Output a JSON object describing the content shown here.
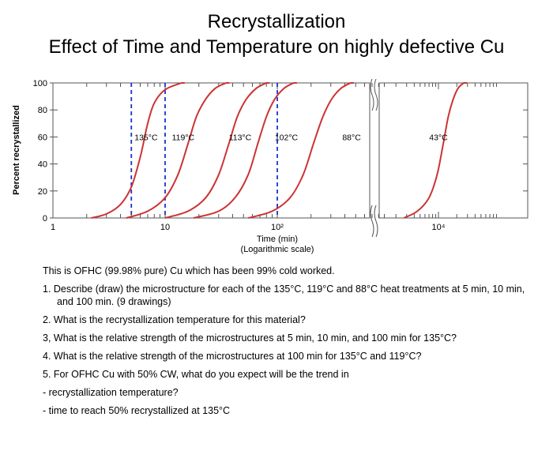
{
  "title_line1": "Recrystallization",
  "title_line2": "Effect of Time and Temperature on highly defective Cu",
  "chart_data": {
    "type": "line",
    "ylabel": "Percent recrystallized",
    "xlabel": "Time (min)",
    "xlabel_sub": "(Logarithmic scale)",
    "x_scale": "log",
    "ylim": [
      0,
      100
    ],
    "y_ticks": [
      "0",
      "20",
      "40",
      "60",
      "80",
      "100"
    ],
    "x_tick_labels_left": [
      "1",
      "10",
      "10²"
    ],
    "x_tick_labels_right": [
      "10⁴"
    ],
    "x_range_left_panel": [
      1,
      1000
    ],
    "x_range_right_panel": [
      1000,
      100000
    ],
    "axis_break": "between left and right panels",
    "vertical_dashed_lines_min": [
      5,
      10,
      100
    ],
    "series": [
      {
        "name": "135°C",
        "x": [
          2.2,
          3,
          4,
          5,
          6,
          7,
          8,
          10,
          14
        ],
        "y": [
          0,
          3,
          10,
          23,
          45,
          70,
          85,
          95,
          100
        ]
      },
      {
        "name": "119°C",
        "x": [
          4.5,
          7,
          10,
          13,
          16,
          19,
          23,
          28,
          35
        ],
        "y": [
          0,
          5,
          15,
          32,
          55,
          75,
          88,
          96,
          100
        ]
      },
      {
        "name": "113°C",
        "x": [
          10,
          16,
          23,
          30,
          37,
          44,
          53,
          65,
          80
        ],
        "y": [
          0,
          5,
          15,
          32,
          55,
          75,
          88,
          96,
          100
        ]
      },
      {
        "name": "102°C",
        "x": [
          18,
          30,
          42,
          55,
          67,
          80,
          95,
          115,
          140
        ],
        "y": [
          0,
          5,
          15,
          32,
          55,
          75,
          88,
          96,
          100
        ]
      },
      {
        "name": "88°C",
        "x": [
          55,
          90,
          130,
          170,
          210,
          255,
          305,
          370,
          450
        ],
        "y": [
          0,
          5,
          15,
          32,
          55,
          75,
          88,
          96,
          100
        ]
      },
      {
        "name": "43°C",
        "x": [
          2700,
          4500,
          7000,
          9500,
          12000,
          14500,
          17500,
          21000,
          26000
        ],
        "y": [
          0,
          5,
          15,
          32,
          55,
          75,
          88,
          96,
          100
        ]
      }
    ],
    "curve_color": "#cc3333",
    "dashed_line_color": "#1a33c8"
  },
  "questions": [
    "This is OFHC (99.98% pure) Cu which has been 99% cold worked.",
    "1. Describe (draw) the microstructure for each of the 135°C, 119°C and 88°C heat treatments at 5 min, 10 min, and 100 min. (9 drawings)",
    "2. What is the recrystallization temperature for this material?",
    "3, What is the relative strength of the microstructures at 5 min, 10 min, and 100 min for 135°C?",
    "4. What is the relative strength of the microstructures at 100 min for 135°C and 119°C?",
    "5. For OFHC Cu with 50% CW, what do you expect will be the trend in",
    "- recrystallization temperature?",
    "- time to reach 50% recrystallized at 135°C"
  ]
}
